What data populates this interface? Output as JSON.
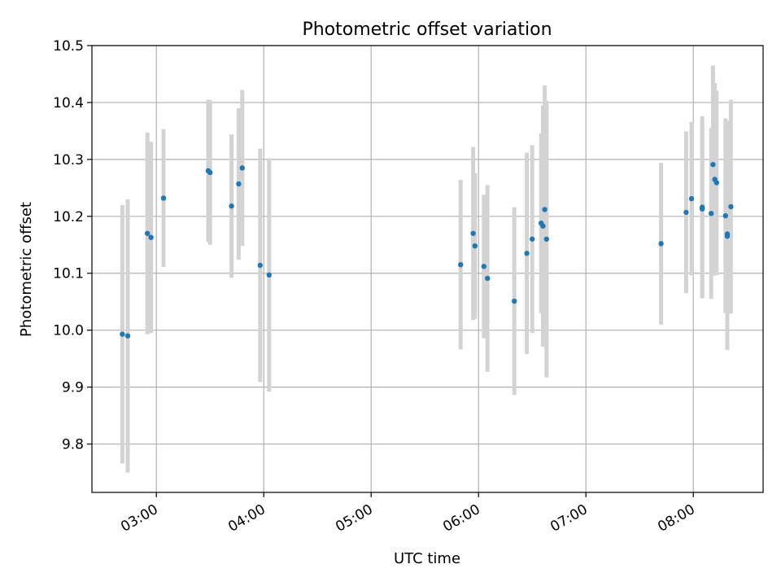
{
  "chart_data": {
    "type": "scatter",
    "title": "Photometric offset variation",
    "xlabel": "UTC time",
    "ylabel": "Photometric offset",
    "grid": true,
    "xlim": [
      "02:24",
      "08:39"
    ],
    "ylim": [
      9.715,
      10.5
    ],
    "x_ticks": [
      "03:00",
      "04:00",
      "05:00",
      "06:00",
      "07:00",
      "08:00"
    ],
    "y_ticks": [
      9.8,
      9.9,
      10.0,
      10.1,
      10.2,
      10.3,
      10.4,
      10.5
    ],
    "y_tick_labels": [
      "9.8",
      "9.9",
      "10.0",
      "10.1",
      "10.2",
      "10.3",
      "10.4",
      "10.5"
    ],
    "colors": {
      "point": "#1f77b4",
      "errorbar": "#d3d3d3",
      "grid": "#b0b0b0"
    },
    "points": [
      {
        "x": "02:41",
        "y": 9.993,
        "err": 0.227
      },
      {
        "x": "02:44",
        "y": 9.99,
        "err": 0.24
      },
      {
        "x": "02:55",
        "y": 10.17,
        "err": 0.177
      },
      {
        "x": "02:57",
        "y": 10.163,
        "err": 0.168
      },
      {
        "x": "03:04",
        "y": 10.232,
        "err": 0.121
      },
      {
        "x": "03:29",
        "y": 10.28,
        "err": 0.125
      },
      {
        "x": "03:30",
        "y": 10.277,
        "err": 0.127
      },
      {
        "x": "03:42",
        "y": 10.218,
        "err": 0.126
      },
      {
        "x": "03:46",
        "y": 10.257,
        "err": 0.133
      },
      {
        "x": "03:48",
        "y": 10.285,
        "err": 0.137
      },
      {
        "x": "03:58",
        "y": 10.114,
        "err": 0.205
      },
      {
        "x": "04:03",
        "y": 10.097,
        "err": 0.205
      },
      {
        "x": "05:50",
        "y": 10.115,
        "err": 0.149
      },
      {
        "x": "05:57",
        "y": 10.17,
        "err": 0.152
      },
      {
        "x": "05:58",
        "y": 10.148,
        "err": 0.128
      },
      {
        "x": "06:03",
        "y": 10.112,
        "err": 0.126
      },
      {
        "x": "06:05",
        "y": 10.091,
        "err": 0.164
      },
      {
        "x": "06:20",
        "y": 10.051,
        "err": 0.165
      },
      {
        "x": "06:27",
        "y": 10.135,
        "err": 0.177
      },
      {
        "x": "06:30",
        "y": 10.16,
        "err": 0.165
      },
      {
        "x": "06:35",
        "y": 10.188,
        "err": 0.158
      },
      {
        "x": "06:36",
        "y": 10.183,
        "err": 0.212
      },
      {
        "x": "06:37",
        "y": 10.212,
        "err": 0.218
      },
      {
        "x": "06:38",
        "y": 10.16,
        "err": 0.243
      },
      {
        "x": "07:42",
        "y": 10.152,
        "err": 0.142
      },
      {
        "x": "07:56",
        "y": 10.207,
        "err": 0.142
      },
      {
        "x": "07:59",
        "y": 10.231,
        "err": 0.135
      },
      {
        "x": "08:05",
        "y": 10.216,
        "err": 0.16
      },
      {
        "x": "08:05",
        "y": 10.213,
        "err": 0.155
      },
      {
        "x": "08:10",
        "y": 10.205,
        "err": 0.15
      },
      {
        "x": "08:11",
        "y": 10.291,
        "err": 0.174
      },
      {
        "x": "08:12",
        "y": 10.265,
        "err": 0.169
      },
      {
        "x": "08:13",
        "y": 10.259,
        "err": 0.162
      },
      {
        "x": "08:18",
        "y": 10.201,
        "err": 0.171
      },
      {
        "x": "08:19",
        "y": 10.165,
        "err": 0.2
      },
      {
        "x": "08:19",
        "y": 10.169,
        "err": 0.199
      },
      {
        "x": "08:21",
        "y": 10.217,
        "err": 0.188
      }
    ]
  }
}
